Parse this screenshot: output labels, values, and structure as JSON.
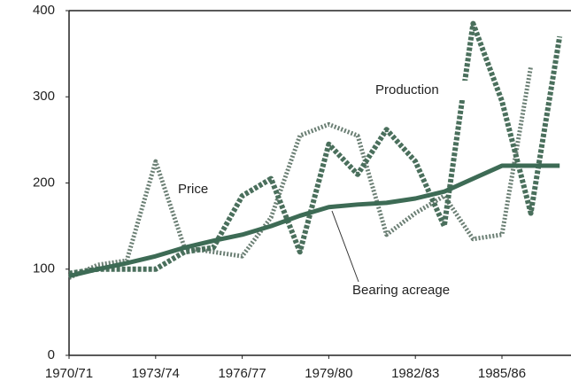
{
  "chart_data": {
    "type": "line",
    "categories": [
      "1970/71",
      null,
      null,
      "1973/74",
      null,
      null,
      "1976/77",
      null,
      null,
      "1979/80",
      null,
      null,
      "1982/83",
      null,
      null,
      "1985/86",
      null,
      null
    ],
    "series": [
      {
        "name": "Bearing acreage",
        "color": "#3d6b55",
        "style": "solid",
        "values": [
          92,
          100,
          107,
          115,
          125,
          133,
          140,
          150,
          162,
          172,
          175,
          177,
          182,
          190,
          205,
          220,
          220,
          220
        ]
      },
      {
        "name": "Production",
        "color": "#4a6f5c",
        "style": "dashed",
        "values": [
          95,
          100,
          100,
          100,
          120,
          125,
          185,
          205,
          120,
          245,
          210,
          262,
          225,
          150,
          385,
          295,
          165,
          370
        ]
      },
      {
        "name": "Price",
        "color": "#6b7f74",
        "style": "dotted",
        "values": [
          90,
          105,
          110,
          225,
          125,
          120,
          115,
          160,
          255,
          268,
          255,
          140,
          165,
          185,
          135,
          140,
          335,
          null
        ]
      }
    ],
    "annotations": [
      "Production",
      "Price",
      "Bearing acreage"
    ],
    "ylim": [
      0,
      400
    ],
    "yticks": [
      0,
      100,
      200,
      300,
      400
    ],
    "grid": false
  }
}
